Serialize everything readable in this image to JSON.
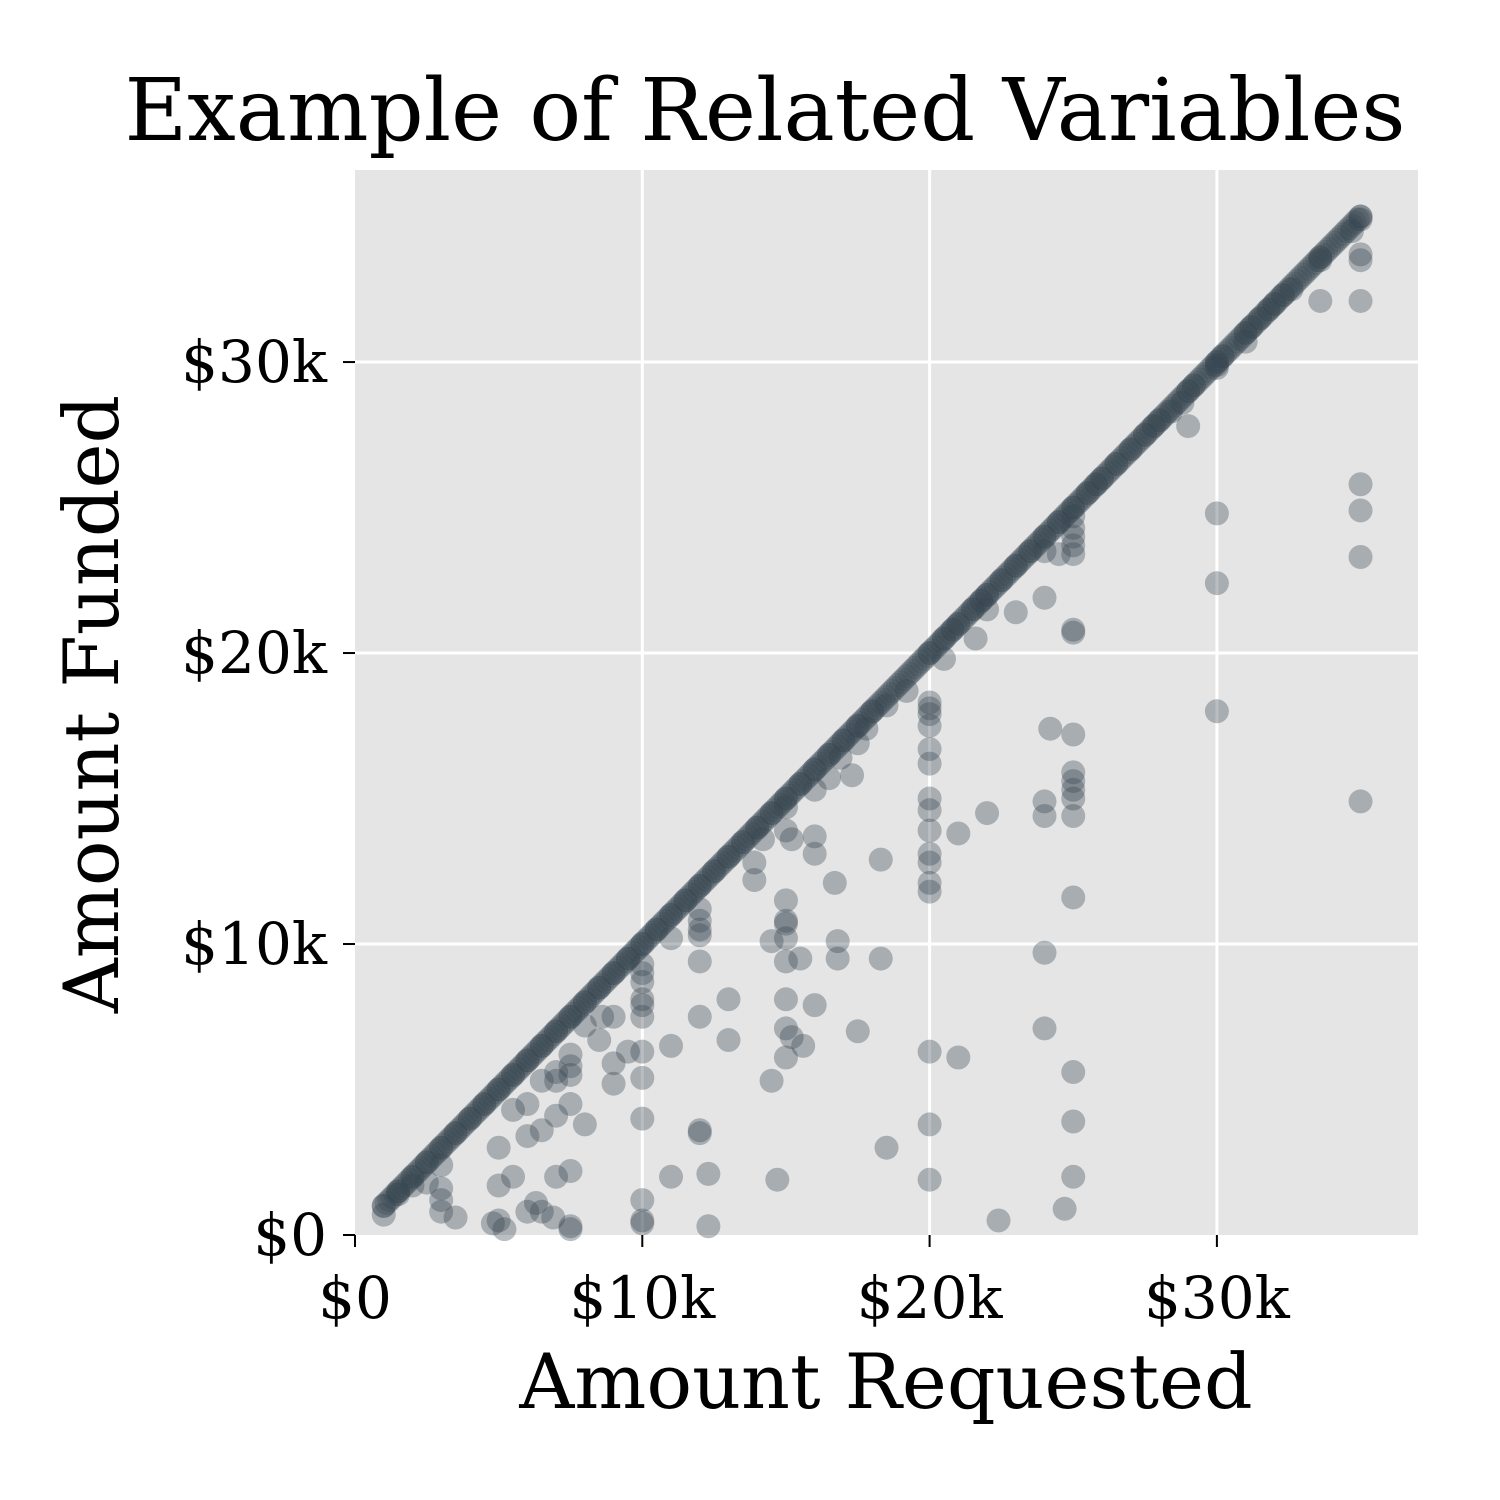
{
  "chart_data": {
    "type": "scatter",
    "title": "Example of Related Variables",
    "xlabel": "Amount Requested",
    "ylabel": "Amount Funded",
    "xlim": [
      0,
      37000
    ],
    "ylim": [
      0,
      36600
    ],
    "x_ticks": [
      {
        "value": 0,
        "label": "$0"
      },
      {
        "value": 10000,
        "label": "$10k"
      },
      {
        "value": 20000,
        "label": "$20k"
      },
      {
        "value": 30000,
        "label": "$30k"
      }
    ],
    "y_ticks": [
      {
        "value": 0,
        "label": "$0"
      },
      {
        "value": 10000,
        "label": "$10k"
      },
      {
        "value": 20000,
        "label": "$20k"
      },
      {
        "value": 30000,
        "label": "$30k"
      }
    ],
    "grid": true,
    "point_color": "#36454f",
    "plot_background": "#e5e5e5",
    "grid_color": "#ffffff",
    "diagonal_range": [
      1000,
      35000
    ],
    "points": [
      [
        35000,
        35000
      ],
      [
        35000,
        34900
      ],
      [
        34700,
        34500
      ],
      [
        35000,
        33700
      ],
      [
        35000,
        33500
      ],
      [
        33600,
        33600
      ],
      [
        33600,
        33500
      ],
      [
        35000,
        32100
      ],
      [
        33600,
        32100
      ],
      [
        32600,
        32500
      ],
      [
        32300,
        32300
      ],
      [
        32000,
        32000
      ],
      [
        31800,
        31800
      ],
      [
        31500,
        31500
      ],
      [
        31200,
        31200
      ],
      [
        31000,
        31000
      ],
      [
        31000,
        30700
      ],
      [
        30200,
        30200
      ],
      [
        30000,
        30000
      ],
      [
        30000,
        29900
      ],
      [
        30000,
        29800
      ],
      [
        29200,
        29200
      ],
      [
        29000,
        29000
      ],
      [
        28800,
        28600
      ],
      [
        28400,
        28300
      ],
      [
        29000,
        27800
      ],
      [
        28000,
        28000
      ],
      [
        27800,
        27800
      ],
      [
        27500,
        27500
      ],
      [
        27000,
        27000
      ],
      [
        26500,
        26500
      ],
      [
        26000,
        26000
      ],
      [
        25800,
        25800
      ],
      [
        25500,
        25500
      ],
      [
        25000,
        25000
      ],
      [
        25000,
        24700
      ],
      [
        25000,
        24300
      ],
      [
        25000,
        24000
      ],
      [
        25000,
        23700
      ],
      [
        25000,
        23400
      ],
      [
        24500,
        24500
      ],
      [
        24000,
        24000
      ],
      [
        24000,
        23500
      ],
      [
        24500,
        23400
      ],
      [
        23500,
        23500
      ],
      [
        23000,
        23000
      ],
      [
        22500,
        22500
      ],
      [
        22000,
        22000
      ],
      [
        21800,
        21800
      ],
      [
        21500,
        21500
      ],
      [
        21000,
        21000
      ],
      [
        20800,
        20800
      ],
      [
        20500,
        20500
      ],
      [
        20000,
        20000
      ],
      [
        20500,
        19800
      ],
      [
        21600,
        20500
      ],
      [
        22000,
        21500
      ],
      [
        24000,
        21900
      ],
      [
        23000,
        21400
      ],
      [
        25000,
        20800
      ],
      [
        25000,
        20700
      ],
      [
        35000,
        25800
      ],
      [
        35000,
        24900
      ],
      [
        35000,
        23300
      ],
      [
        30000,
        24800
      ],
      [
        30000,
        22400
      ],
      [
        30000,
        18000
      ],
      [
        20000,
        18300
      ],
      [
        20000,
        18100
      ],
      [
        20000,
        17900
      ],
      [
        20000,
        17500
      ],
      [
        20000,
        16700
      ],
      [
        20000,
        16200
      ],
      [
        20000,
        15000
      ],
      [
        20000,
        14600
      ],
      [
        20000,
        13900
      ],
      [
        20000,
        13100
      ],
      [
        20000,
        12800
      ],
      [
        20000,
        12100
      ],
      [
        20000,
        11800
      ],
      [
        20000,
        6300
      ],
      [
        20000,
        3800
      ],
      [
        20000,
        1900
      ],
      [
        21000,
        13800
      ],
      [
        22000,
        14500
      ],
      [
        21000,
        6100
      ],
      [
        22400,
        500
      ],
      [
        24200,
        17400
      ],
      [
        25000,
        17200
      ],
      [
        25000,
        15900
      ],
      [
        25000,
        15600
      ],
      [
        25000,
        15300
      ],
      [
        25000,
        15000
      ],
      [
        25000,
        14400
      ],
      [
        24000,
        14900
      ],
      [
        24000,
        14400
      ],
      [
        25000,
        11600
      ],
      [
        24000,
        9700
      ],
      [
        24000,
        7100
      ],
      [
        25000,
        5600
      ],
      [
        25000,
        3900
      ],
      [
        25000,
        2000
      ],
      [
        24700,
        900
      ],
      [
        35000,
        14900
      ],
      [
        18000,
        18000
      ],
      [
        17500,
        17500
      ],
      [
        17000,
        17000
      ],
      [
        16500,
        16500
      ],
      [
        16000,
        16000
      ],
      [
        15500,
        15500
      ],
      [
        15000,
        15000
      ],
      [
        14500,
        14500
      ],
      [
        14000,
        14000
      ],
      [
        13500,
        13500
      ],
      [
        13000,
        13000
      ],
      [
        12500,
        12500
      ],
      [
        12000,
        12000
      ],
      [
        11500,
        11500
      ],
      [
        11000,
        11000
      ],
      [
        10500,
        10500
      ],
      [
        10000,
        10000
      ],
      [
        9500,
        9500
      ],
      [
        9000,
        9000
      ],
      [
        8500,
        8500
      ],
      [
        8000,
        8000
      ],
      [
        7500,
        7500
      ],
      [
        7000,
        7000
      ],
      [
        6500,
        6500
      ],
      [
        6000,
        6000
      ],
      [
        5500,
        5500
      ],
      [
        5000,
        5000
      ],
      [
        4500,
        4500
      ],
      [
        4000,
        4000
      ],
      [
        3500,
        3500
      ],
      [
        3000,
        3000
      ],
      [
        2500,
        2500
      ],
      [
        2000,
        2000
      ],
      [
        1500,
        1500
      ],
      [
        1000,
        1000
      ],
      [
        19200,
        18700
      ],
      [
        18500,
        18200
      ],
      [
        17800,
        17400
      ],
      [
        17500,
        16900
      ],
      [
        16900,
        16400
      ],
      [
        17300,
        15800
      ],
      [
        16500,
        15700
      ],
      [
        16000,
        15300
      ],
      [
        15000,
        14700
      ],
      [
        14200,
        13600
      ],
      [
        15000,
        13900
      ],
      [
        15200,
        13600
      ],
      [
        16000,
        13700
      ],
      [
        16000,
        13100
      ],
      [
        18300,
        12900
      ],
      [
        16700,
        12100
      ],
      [
        13900,
        12800
      ],
      [
        13900,
        12200
      ],
      [
        12000,
        11200
      ],
      [
        12000,
        10800
      ],
      [
        12000,
        10500
      ],
      [
        12000,
        10300
      ],
      [
        12000,
        9400
      ],
      [
        12000,
        7500
      ],
      [
        12000,
        3600
      ],
      [
        12000,
        3500
      ],
      [
        11000,
        10200
      ],
      [
        11000,
        6500
      ],
      [
        11000,
        2000
      ],
      [
        12300,
        2100
      ],
      [
        12300,
        300
      ],
      [
        13000,
        8100
      ],
      [
        13000,
        6700
      ],
      [
        14500,
        10100
      ],
      [
        14500,
        5300
      ],
      [
        14700,
        1900
      ],
      [
        15000,
        11500
      ],
      [
        15000,
        10800
      ],
      [
        15000,
        10700
      ],
      [
        15000,
        10200
      ],
      [
        15000,
        9400
      ],
      [
        15000,
        8100
      ],
      [
        15000,
        7100
      ],
      [
        15000,
        6100
      ],
      [
        15500,
        9500
      ],
      [
        15200,
        6800
      ],
      [
        15600,
        6500
      ],
      [
        16000,
        7900
      ],
      [
        16800,
        10100
      ],
      [
        16800,
        9500
      ],
      [
        17500,
        7000
      ],
      [
        18300,
        9500
      ],
      [
        18500,
        3000
      ],
      [
        10000,
        9300
      ],
      [
        10000,
        9000
      ],
      [
        10000,
        8700
      ],
      [
        10000,
        8100
      ],
      [
        10000,
        7900
      ],
      [
        10000,
        7500
      ],
      [
        10000,
        6300
      ],
      [
        10000,
        5400
      ],
      [
        10000,
        4000
      ],
      [
        10000,
        1200
      ],
      [
        10000,
        500
      ],
      [
        10000,
        400
      ],
      [
        9500,
        6300
      ],
      [
        9000,
        7500
      ],
      [
        9000,
        5900
      ],
      [
        9000,
        5200
      ],
      [
        8600,
        7500
      ],
      [
        8500,
        6700
      ],
      [
        8000,
        7200
      ],
      [
        7500,
        6200
      ],
      [
        7500,
        5800
      ],
      [
        7500,
        5500
      ],
      [
        7500,
        4500
      ],
      [
        7500,
        300
      ],
      [
        7000,
        5600
      ],
      [
        7000,
        5300
      ],
      [
        7000,
        4100
      ],
      [
        7000,
        2000
      ],
      [
        7500,
        2200
      ],
      [
        8000,
        3800
      ],
      [
        6500,
        5300
      ],
      [
        6500,
        3600
      ],
      [
        6500,
        800
      ],
      [
        6300,
        1100
      ],
      [
        6000,
        4500
      ],
      [
        6000,
        3400
      ],
      [
        6000,
        800
      ],
      [
        5500,
        4300
      ],
      [
        5500,
        2000
      ],
      [
        5000,
        3000
      ],
      [
        5000,
        1700
      ],
      [
        5000,
        500
      ],
      [
        4800,
        400
      ],
      [
        5200,
        200
      ],
      [
        6900,
        600
      ],
      [
        7500,
        200
      ],
      [
        3500,
        600
      ],
      [
        3000,
        800
      ],
      [
        3000,
        2400
      ],
      [
        3000,
        1600
      ],
      [
        3000,
        1200
      ],
      [
        2500,
        1800
      ],
      [
        2000,
        1700
      ],
      [
        1500,
        1400
      ],
      [
        1000,
        700
      ]
    ]
  }
}
